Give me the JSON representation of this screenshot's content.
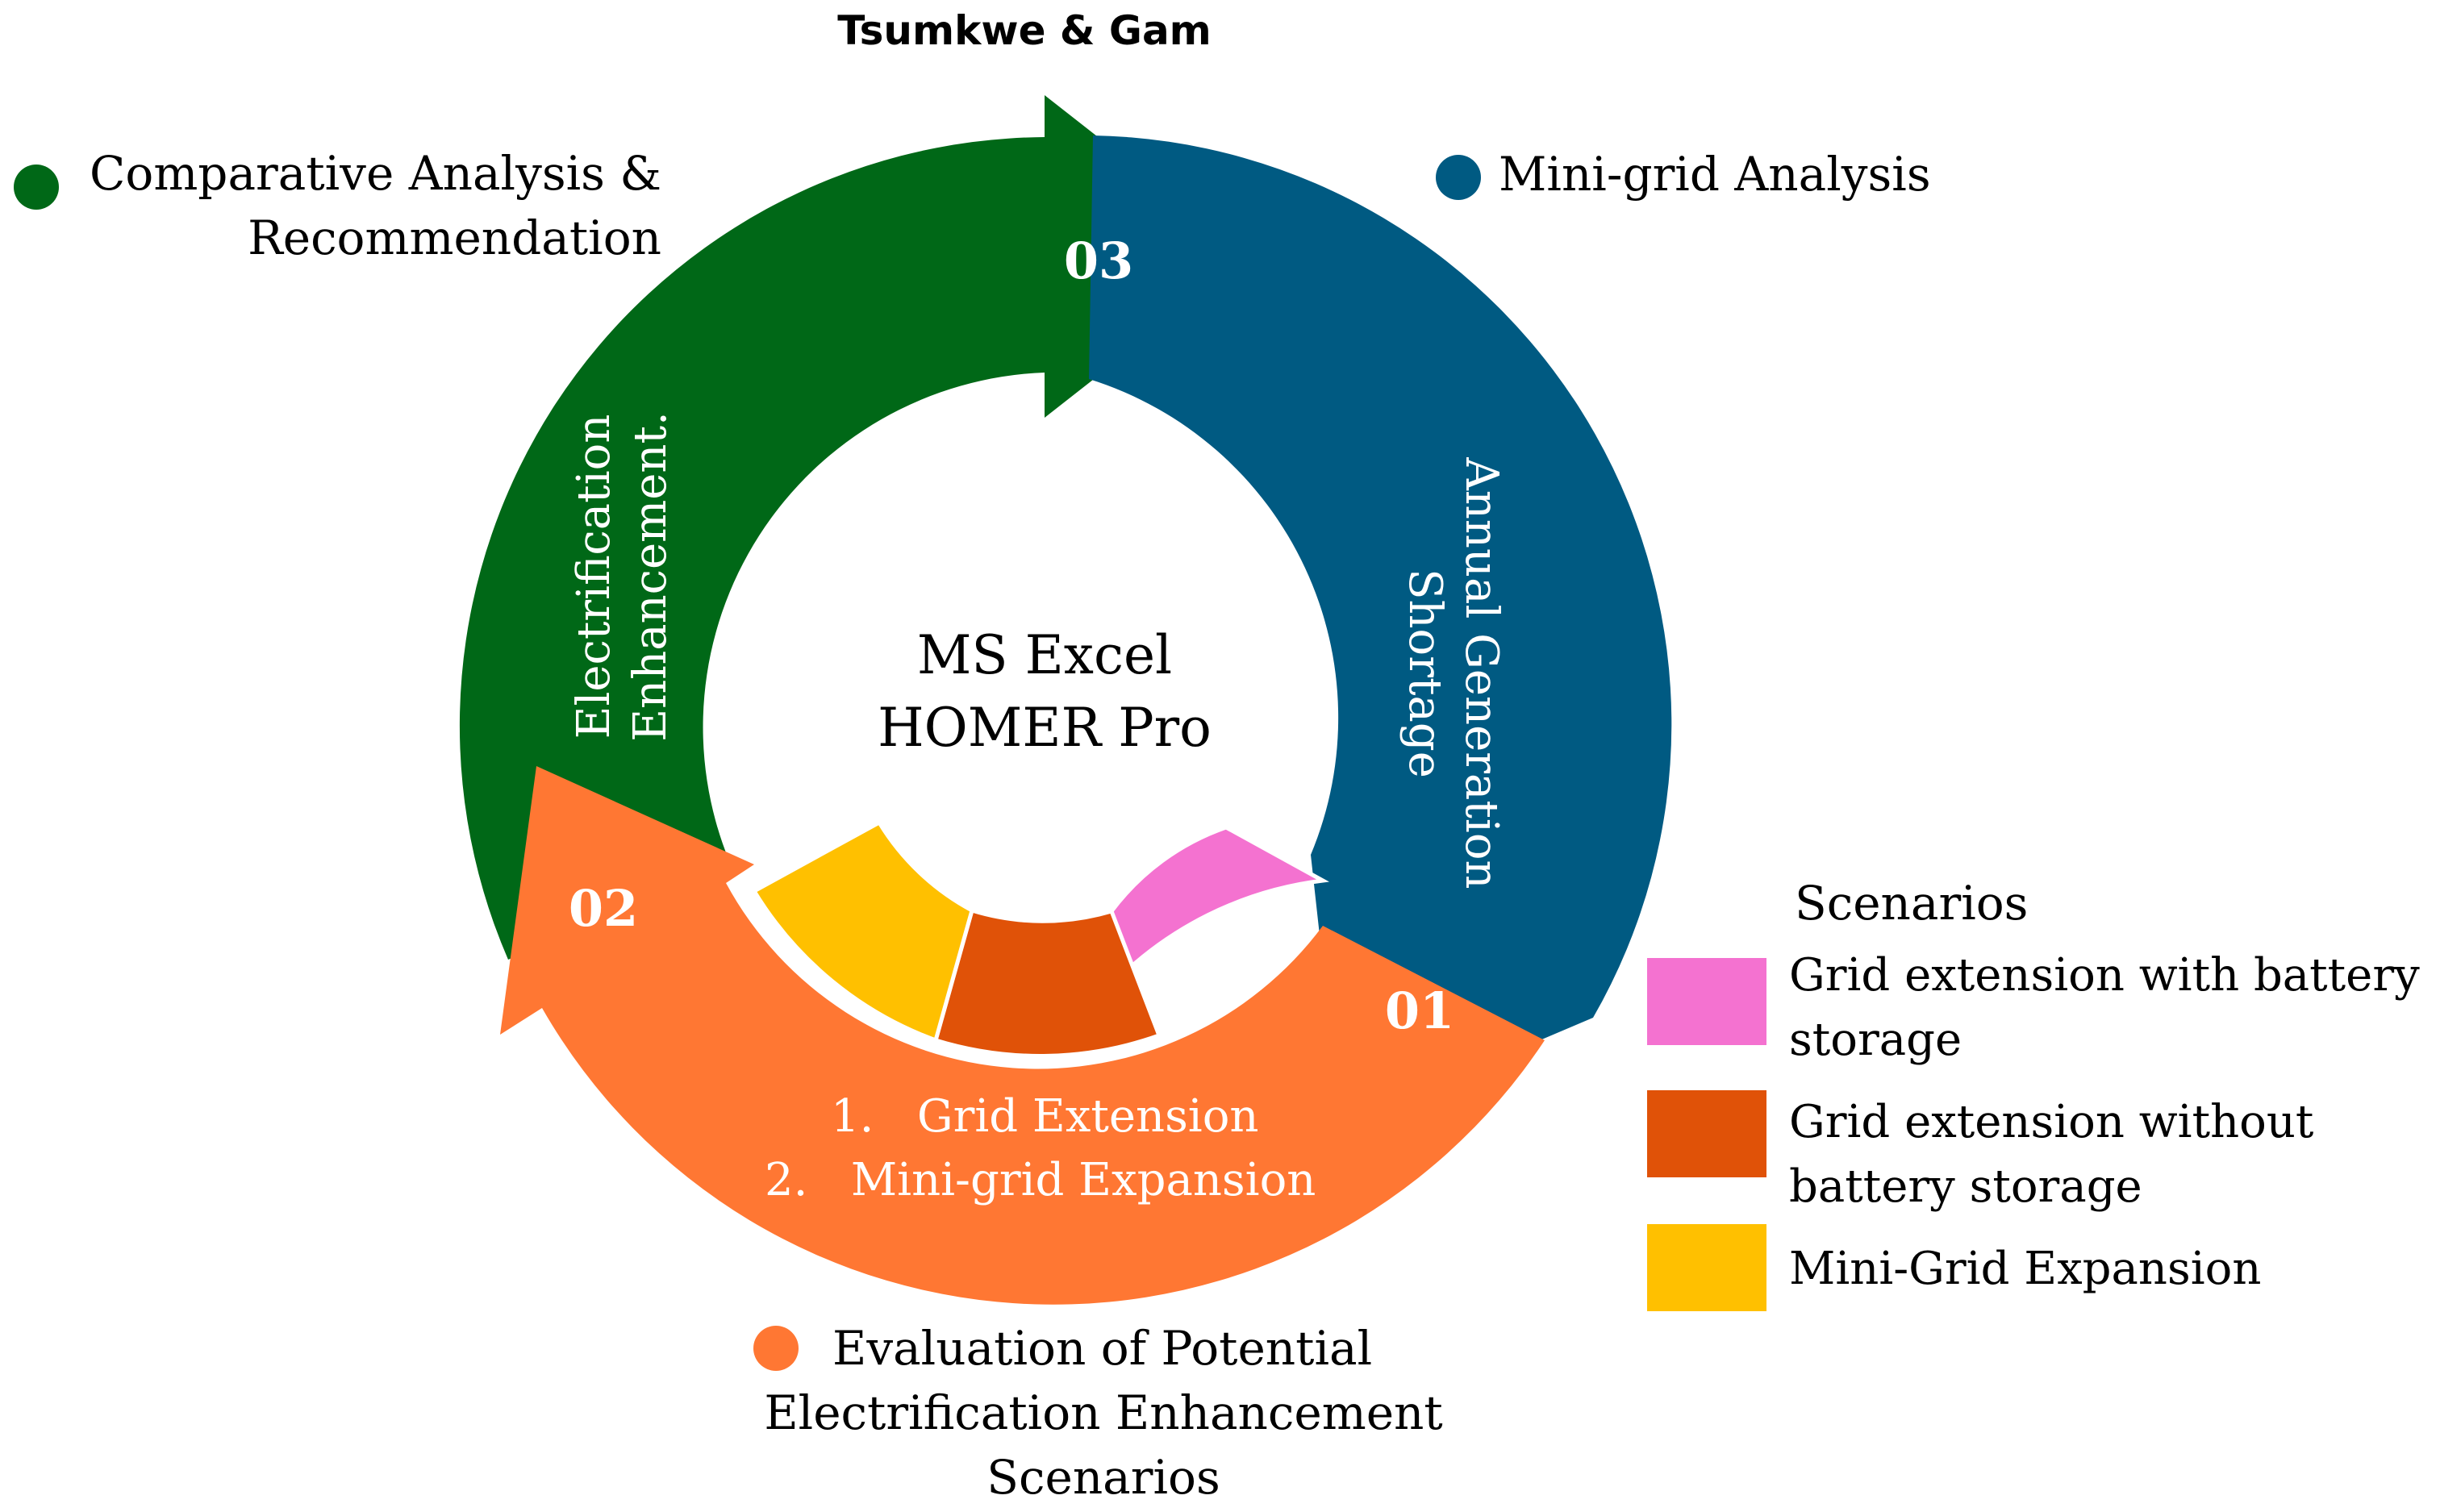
{
  "title": "Tsumkwe & Gam",
  "center": {
    "line1": "MS Excel",
    "line2": "HOMER Pro"
  },
  "stages": [
    {
      "number": "01",
      "legend_lines": [
        "Mini-grid Analysis"
      ],
      "arc_lines": [
        "Annual Generation",
        "Shortage"
      ],
      "color": "#005a82"
    },
    {
      "number": "02",
      "legend_lines": [
        "Evaluation of Potential",
        "Electrification Enhancement",
        "Scenarios"
      ],
      "arc_lines": [
        "1.   Grid Extension",
        "2.   Mini-grid Expansion"
      ],
      "color": "#ff7733"
    },
    {
      "number": "03",
      "legend_lines": [
        "Comparative Analysis &",
        "Recommendation"
      ],
      "arc_lines": [
        "Electrification",
        "Enhancement."
      ],
      "color": "#006817"
    }
  ],
  "scenarios": {
    "heading": "Scenarios",
    "items": [
      {
        "lines": [
          "Grid extension with battery",
          "storage"
        ],
        "color": "#f472d0"
      },
      {
        "lines": [
          "Grid extension without",
          "battery storage"
        ],
        "color": "#e05208"
      },
      {
        "lines": [
          "Mini-Grid Expansion"
        ],
        "color": "#ffc000"
      }
    ]
  }
}
